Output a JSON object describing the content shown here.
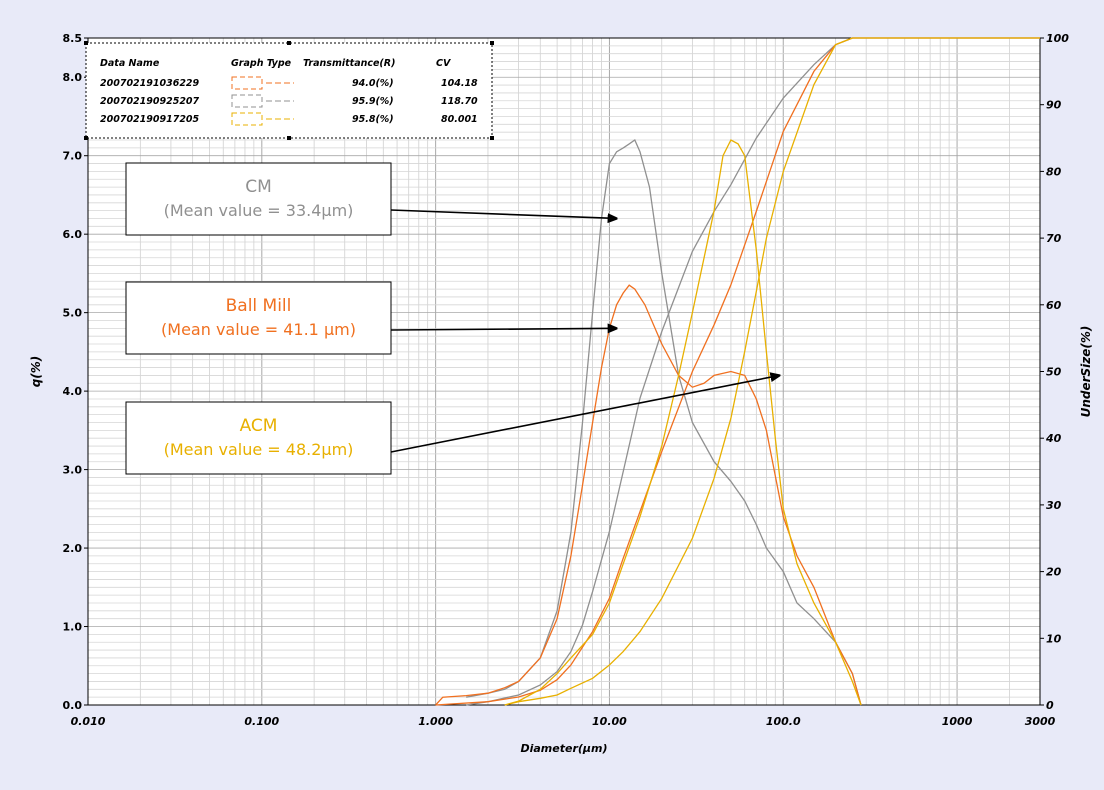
{
  "chart_data": {
    "type": "line",
    "title": "",
    "xlabel": "Diameter(µm)",
    "ylabel_left": "q(%)",
    "ylabel_right": "UnderSize(%)",
    "x_scale": "log",
    "xlim": [
      0.01,
      3000
    ],
    "ylim_left": [
      0,
      8.5
    ],
    "ylim_right": [
      0,
      100
    ],
    "grid": true,
    "x_tick_labels": [
      {
        "value": 0.01,
        "label": "0.010"
      },
      {
        "value": 0.1,
        "label": "0.100"
      },
      {
        "value": 1,
        "label": "1.000"
      },
      {
        "value": 10,
        "label": "10.00"
      },
      {
        "value": 100,
        "label": "100.0"
      },
      {
        "value": 1000,
        "label": "1000"
      },
      {
        "value": 3000,
        "label": "3000"
      }
    ],
    "y_left_tick_labels": [
      {
        "value": 0,
        "label": "0.0"
      },
      {
        "value": 1,
        "label": "1.0"
      },
      {
        "value": 2,
        "label": "2.0"
      },
      {
        "value": 3,
        "label": "3.0"
      },
      {
        "value": 4,
        "label": "4.0"
      },
      {
        "value": 5,
        "label": "5.0"
      },
      {
        "value": 6,
        "label": "6.0"
      },
      {
        "value": 7,
        "label": "7.0"
      },
      {
        "value": 8,
        "label": "8.0"
      },
      {
        "value": 8.5,
        "label": "8.5"
      }
    ],
    "y_right_tick_labels": [
      {
        "value": 0,
        "label": "0"
      },
      {
        "value": 10,
        "label": "10"
      },
      {
        "value": 20,
        "label": "20"
      },
      {
        "value": 30,
        "label": "30"
      },
      {
        "value": 40,
        "label": "40"
      },
      {
        "value": 50,
        "label": "50"
      },
      {
        "value": 60,
        "label": "60"
      },
      {
        "value": 70,
        "label": "70"
      },
      {
        "value": 80,
        "label": "80"
      },
      {
        "value": 90,
        "label": "90"
      },
      {
        "value": 100,
        "label": "100"
      }
    ],
    "legend": {
      "placement": "top-left",
      "headers": [
        "Data Name",
        "Graph Type",
        "Transmittance(R)",
        "CV"
      ],
      "rows": [
        {
          "name": "200702191036229",
          "transmittance": "94.0(%)",
          "cv": "104.18",
          "color": "#f07020"
        },
        {
          "name": "200702190925207",
          "transmittance": "95.9(%)",
          "cv": "118.70",
          "color": "#909090"
        },
        {
          "name": "200702190917205",
          "transmittance": "95.8(%)",
          "cv": "80.001",
          "color": "#e8b000"
        }
      ]
    },
    "annotations": [
      {
        "line1": "CM",
        "line2": "(Mean value = 33.4µm)",
        "color": "#909090",
        "arrow_to": {
          "x": 11,
          "q": 6.2
        }
      },
      {
        "line1": "Ball Mill",
        "line2": "(Mean value = 41.1 µm)",
        "color": "#f07020",
        "arrow_to": {
          "x": 11,
          "q": 4.8
        }
      },
      {
        "line1": "ACM",
        "line2": "(Mean value = 48.2µm)",
        "color": "#e8b000",
        "arrow_to": {
          "x": 95,
          "q": 4.2
        }
      }
    ],
    "series": [
      {
        "color": "#909090",
        "frequency": [
          [
            1.5,
            0.1
          ],
          [
            2,
            0.15
          ],
          [
            2.5,
            0.2
          ],
          [
            3,
            0.3
          ],
          [
            4,
            0.6
          ],
          [
            5,
            1.2
          ],
          [
            6,
            2.2
          ],
          [
            7,
            3.6
          ],
          [
            8,
            5.0
          ],
          [
            9,
            6.2
          ],
          [
            10,
            6.9
          ],
          [
            11,
            7.05
          ],
          [
            12,
            7.1
          ],
          [
            13,
            7.15
          ],
          [
            14,
            7.2
          ],
          [
            15,
            7.05
          ],
          [
            17,
            6.6
          ],
          [
            20,
            5.5
          ],
          [
            25,
            4.2
          ],
          [
            30,
            3.6
          ],
          [
            40,
            3.1
          ],
          [
            50,
            2.85
          ],
          [
            60,
            2.6
          ],
          [
            70,
            2.3
          ],
          [
            80,
            2.0
          ],
          [
            100,
            1.7
          ],
          [
            120,
            1.3
          ],
          [
            150,
            1.1
          ],
          [
            200,
            0.8
          ],
          [
            250,
            0.4
          ],
          [
            280,
            0
          ]
        ],
        "cumulative": [
          [
            1.5,
            0
          ],
          [
            2,
            0.5
          ],
          [
            3,
            1.5
          ],
          [
            4,
            3
          ],
          [
            5,
            5
          ],
          [
            6,
            8
          ],
          [
            7,
            12
          ],
          [
            8,
            17
          ],
          [
            10,
            26
          ],
          [
            12,
            35
          ],
          [
            15,
            46
          ],
          [
            20,
            56
          ],
          [
            30,
            68
          ],
          [
            40,
            74
          ],
          [
            50,
            78
          ],
          [
            70,
            85
          ],
          [
            100,
            91
          ],
          [
            150,
            96
          ],
          [
            200,
            99
          ],
          [
            250,
            100
          ],
          [
            3000,
            100
          ]
        ]
      },
      {
        "color": "#f07020",
        "frequency": [
          [
            1,
            0
          ],
          [
            1.1,
            0.1
          ],
          [
            1.5,
            0.12
          ],
          [
            2,
            0.15
          ],
          [
            2.5,
            0.22
          ],
          [
            3,
            0.3
          ],
          [
            4,
            0.6
          ],
          [
            5,
            1.1
          ],
          [
            6,
            1.9
          ],
          [
            7,
            2.8
          ],
          [
            8,
            3.6
          ],
          [
            9,
            4.3
          ],
          [
            10,
            4.8
          ],
          [
            11,
            5.1
          ],
          [
            12,
            5.25
          ],
          [
            13,
            5.35
          ],
          [
            14,
            5.3
          ],
          [
            16,
            5.1
          ],
          [
            20,
            4.6
          ],
          [
            25,
            4.2
          ],
          [
            30,
            4.05
          ],
          [
            35,
            4.1
          ],
          [
            40,
            4.2
          ],
          [
            50,
            4.25
          ],
          [
            60,
            4.2
          ],
          [
            70,
            3.9
          ],
          [
            80,
            3.5
          ],
          [
            100,
            2.4
          ],
          [
            120,
            1.9
          ],
          [
            150,
            1.5
          ],
          [
            200,
            0.8
          ],
          [
            250,
            0.4
          ],
          [
            280,
            0
          ]
        ],
        "cumulative": [
          [
            1,
            0
          ],
          [
            2,
            0.5
          ],
          [
            3,
            1.2
          ],
          [
            4,
            2.2
          ],
          [
            5,
            3.8
          ],
          [
            6,
            6
          ],
          [
            8,
            11
          ],
          [
            10,
            16
          ],
          [
            12,
            22
          ],
          [
            15,
            29
          ],
          [
            20,
            38
          ],
          [
            30,
            50
          ],
          [
            40,
            57
          ],
          [
            50,
            63
          ],
          [
            70,
            74
          ],
          [
            100,
            86
          ],
          [
            150,
            95
          ],
          [
            200,
            99
          ],
          [
            250,
            100
          ],
          [
            3000,
            100
          ]
        ]
      },
      {
        "color": "#e8b000",
        "frequency": [
          [
            2.5,
            0
          ],
          [
            3,
            0.05
          ],
          [
            4,
            0.2
          ],
          [
            5,
            0.4
          ],
          [
            6,
            0.6
          ],
          [
            8,
            0.9
          ],
          [
            10,
            1.3
          ],
          [
            12,
            1.8
          ],
          [
            15,
            2.4
          ],
          [
            20,
            3.3
          ],
          [
            25,
            4.2
          ],
          [
            30,
            5.0
          ],
          [
            40,
            6.3
          ],
          [
            45,
            7.0
          ],
          [
            50,
            7.2
          ],
          [
            55,
            7.15
          ],
          [
            60,
            7.0
          ],
          [
            70,
            5.8
          ],
          [
            80,
            4.5
          ],
          [
            90,
            3.4
          ],
          [
            100,
            2.5
          ],
          [
            120,
            1.8
          ],
          [
            150,
            1.3
          ],
          [
            200,
            0.8
          ],
          [
            250,
            0.3
          ],
          [
            280,
            0
          ]
        ],
        "cumulative": [
          [
            2.5,
            0
          ],
          [
            3,
            0.5
          ],
          [
            4,
            1
          ],
          [
            5,
            1.5
          ],
          [
            6,
            2.5
          ],
          [
            8,
            4
          ],
          [
            10,
            6
          ],
          [
            12,
            8
          ],
          [
            15,
            11
          ],
          [
            20,
            16
          ],
          [
            30,
            25
          ],
          [
            40,
            34
          ],
          [
            50,
            43
          ],
          [
            60,
            53
          ],
          [
            70,
            62
          ],
          [
            80,
            70
          ],
          [
            100,
            80
          ],
          [
            150,
            93
          ],
          [
            200,
            99
          ],
          [
            250,
            100
          ],
          [
            3000,
            100
          ]
        ]
      }
    ]
  }
}
